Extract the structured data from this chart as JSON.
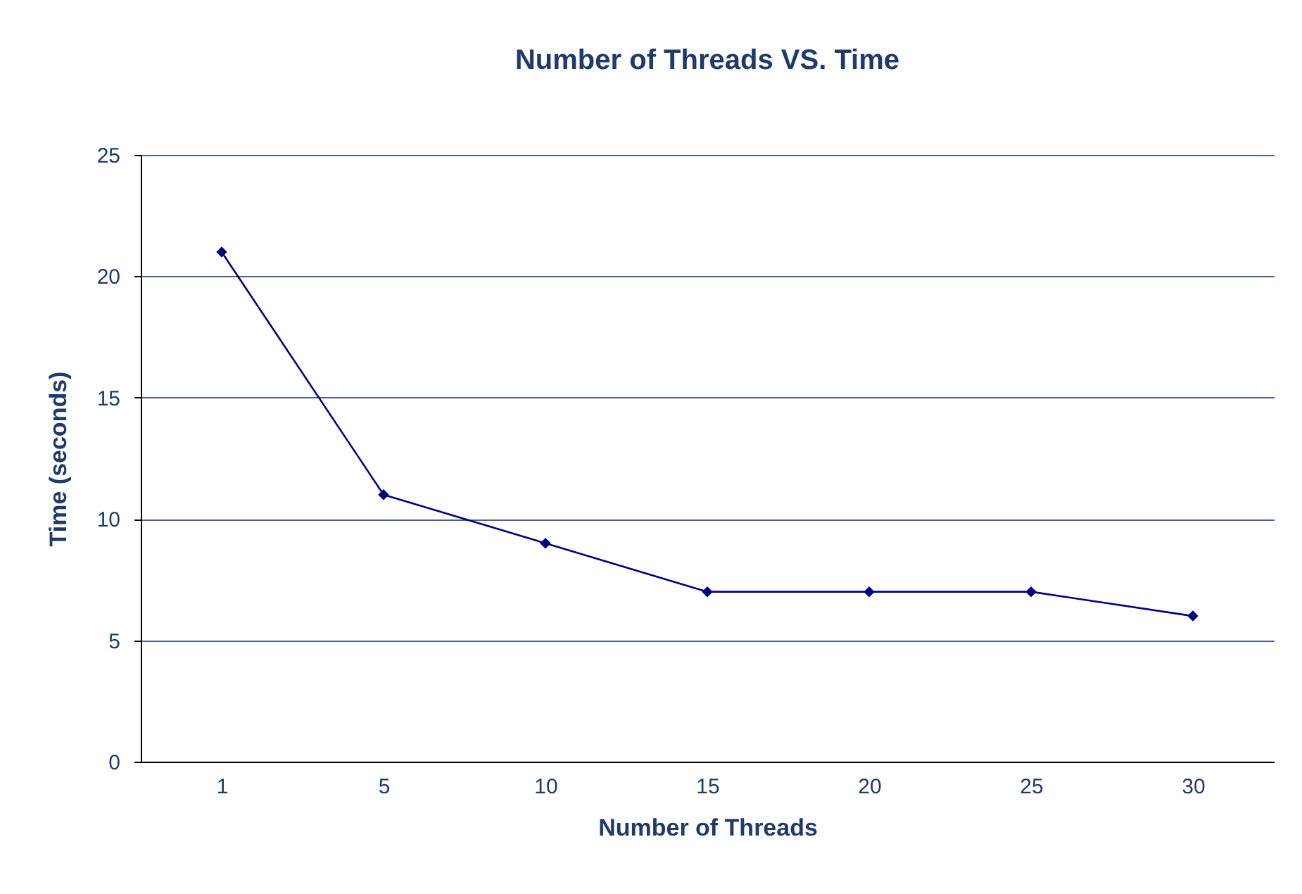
{
  "chart_data": {
    "type": "line",
    "title": "Number of Threads VS. Time",
    "xlabel": "Number of Threads",
    "ylabel": "Time (seconds)",
    "categories": [
      "1",
      "5",
      "10",
      "15",
      "20",
      "25",
      "30"
    ],
    "series": [
      {
        "color": "#000080",
        "values": [
          21,
          11,
          9,
          7,
          7,
          7,
          6
        ]
      }
    ],
    "ylim": [
      0,
      25
    ],
    "yticks": [
      0,
      5,
      10,
      15,
      20,
      25
    ],
    "grid": "y",
    "legend": false,
    "marker": "diamond",
    "line_style": "solid"
  }
}
